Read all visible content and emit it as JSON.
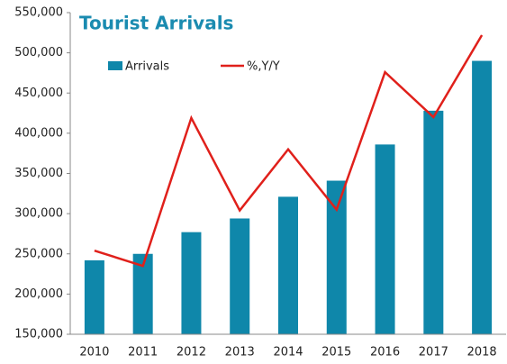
{
  "chart_data": {
    "type": "bar_line",
    "title": "Tourist Arrivals",
    "categories": [
      "2010",
      "2011",
      "2012",
      "2013",
      "2014",
      "2015",
      "2016",
      "2017",
      "2018"
    ],
    "series": [
      {
        "name": "Arrivals",
        "type": "bar",
        "color": "#0f87aa",
        "values": [
          242000,
          250000,
          277000,
          294000,
          321000,
          341000,
          386000,
          428000,
          490000
        ]
      },
      {
        "name": "%,Y/Y",
        "type": "line",
        "color": "#e0201b",
        "values": [
          254000,
          235000,
          419000,
          304000,
          380000,
          305000,
          476000,
          420000,
          522000
        ]
      }
    ],
    "ylim": [
      150000,
      550000
    ],
    "yticks": [
      {
        "value": 150000,
        "label": "150,000"
      },
      {
        "value": 200000,
        "label": "200,000"
      },
      {
        "value": 250000,
        "label": "250,000"
      },
      {
        "value": 300000,
        "label": "300,000"
      },
      {
        "value": 350000,
        "label": "350,000"
      },
      {
        "value": 400000,
        "label": "400,000"
      },
      {
        "value": 450000,
        "label": "450,000"
      },
      {
        "value": 500000,
        "label": "500,000"
      },
      {
        "value": 550000,
        "label": "550,000"
      }
    ],
    "grid": false
  }
}
